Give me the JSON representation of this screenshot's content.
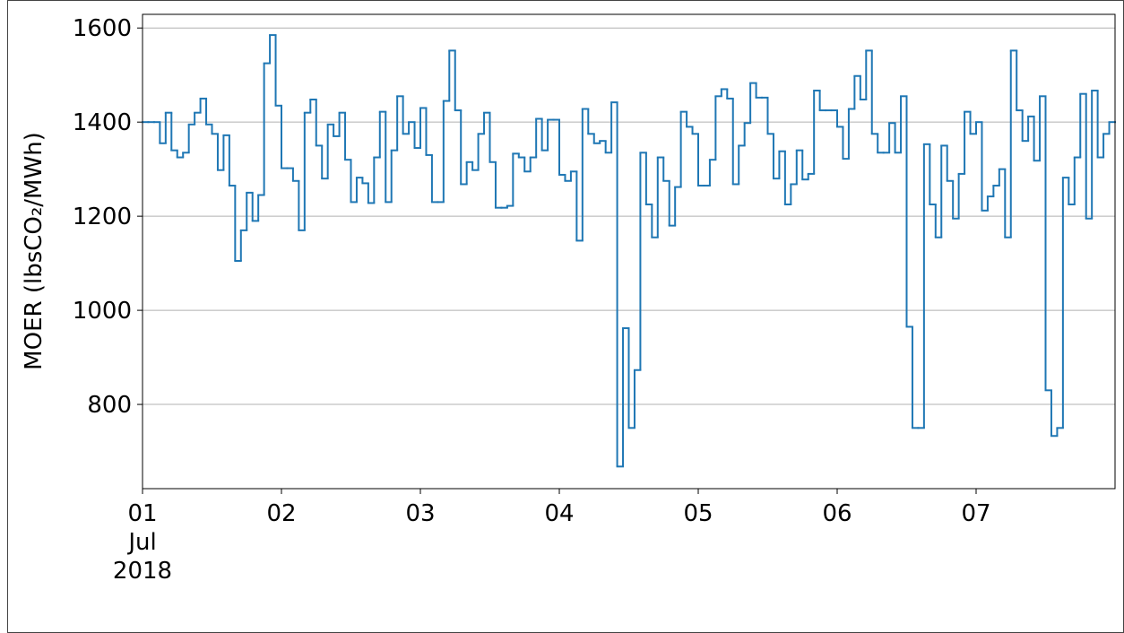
{
  "chart_data": {
    "type": "step",
    "y_label": "MOER (lbsCO₂/MWh)",
    "xlim": [
      0,
      168
    ],
    "xticks": [
      {
        "value": 0,
        "label": "01\nJul\n2018"
      },
      {
        "value": 24,
        "label": "02"
      },
      {
        "value": 48,
        "label": "03"
      },
      {
        "value": 72,
        "label": "04"
      },
      {
        "value": 96,
        "label": "05"
      },
      {
        "value": 120,
        "label": "06"
      },
      {
        "value": 144,
        "label": "07"
      }
    ],
    "ylim": [
      621,
      1629
    ],
    "yticks": [
      800,
      1000,
      1200,
      1400,
      1600
    ],
    "grid": true,
    "x": [
      0,
      1,
      2,
      3,
      4,
      5,
      6,
      7,
      8,
      9,
      10,
      11,
      12,
      13,
      14,
      15,
      16,
      17,
      18,
      19,
      20,
      21,
      22,
      23,
      24,
      25,
      26,
      27,
      28,
      29,
      30,
      31,
      32,
      33,
      34,
      35,
      36,
      37,
      38,
      39,
      40,
      41,
      42,
      43,
      44,
      45,
      46,
      47,
      48,
      49,
      50,
      51,
      52,
      53,
      54,
      55,
      56,
      57,
      58,
      59,
      60,
      61,
      62,
      63,
      64,
      65,
      66,
      67,
      68,
      69,
      70,
      71,
      72,
      73,
      74,
      75,
      76,
      77,
      78,
      79,
      80,
      81,
      82,
      83,
      84,
      85,
      86,
      87,
      88,
      89,
      90,
      91,
      92,
      93,
      94,
      95,
      96,
      97,
      98,
      99,
      100,
      101,
      102,
      103,
      104,
      105,
      106,
      107,
      108,
      109,
      110,
      111,
      112,
      113,
      114,
      115,
      116,
      117,
      118,
      119,
      120,
      121,
      122,
      123,
      124,
      125,
      126,
      127,
      128,
      129,
      130,
      131,
      132,
      133,
      134,
      135,
      136,
      137,
      138,
      139,
      140,
      141,
      142,
      143,
      144,
      145,
      146,
      147,
      148,
      149,
      150,
      151,
      152,
      153,
      154,
      155,
      156,
      157,
      158,
      159,
      160,
      161,
      162,
      163,
      164,
      165,
      166,
      167
    ],
    "series": [
      {
        "color": "#1f77b4",
        "values": [
          1400,
          1400,
          1400,
          1355,
          1420,
          1340,
          1325,
          1335,
          1395,
          1420,
          1450,
          1395,
          1375,
          1298,
          1372,
          1265,
          1105,
          1170,
          1250,
          1190,
          1245,
          1525,
          1585,
          1435,
          1302,
          1302,
          1275,
          1170,
          1420,
          1448,
          1350,
          1280,
          1395,
          1370,
          1420,
          1320,
          1230,
          1282,
          1270,
          1228,
          1325,
          1422,
          1230,
          1340,
          1455,
          1375,
          1400,
          1345,
          1430,
          1330,
          1230,
          1230,
          1445,
          1552,
          1425,
          1268,
          1315,
          1298,
          1375,
          1420,
          1315,
          1218,
          1218,
          1222,
          1333,
          1325,
          1295,
          1325,
          1407,
          1340,
          1405,
          1405,
          1288,
          1275,
          1295,
          1148,
          1428,
          1375,
          1355,
          1360,
          1335,
          1442,
          668,
          962,
          750,
          873,
          1335,
          1225,
          1155,
          1325,
          1275,
          1180,
          1262,
          1422,
          1390,
          1375,
          1265,
          1265,
          1320,
          1455,
          1470,
          1450,
          1268,
          1350,
          1398,
          1483,
          1452,
          1452,
          1375,
          1280,
          1338,
          1225,
          1268,
          1340,
          1278,
          1290,
          1467,
          1425,
          1425,
          1425,
          1390,
          1322,
          1428,
          1498,
          1448,
          1552,
          1375,
          1335,
          1335,
          1398,
          1335,
          1455,
          965,
          750,
          750,
          1353,
          1225,
          1155,
          1350,
          1275,
          1195,
          1290,
          1422,
          1375,
          1400,
          1212,
          1242,
          1265,
          1300,
          1155,
          1552,
          1425,
          1360,
          1412,
          1318,
          1455,
          830,
          733,
          750,
          1282,
          1225,
          1325,
          1460,
          1195,
          1467,
          1325,
          1375,
          1400
        ]
      }
    ]
  }
}
